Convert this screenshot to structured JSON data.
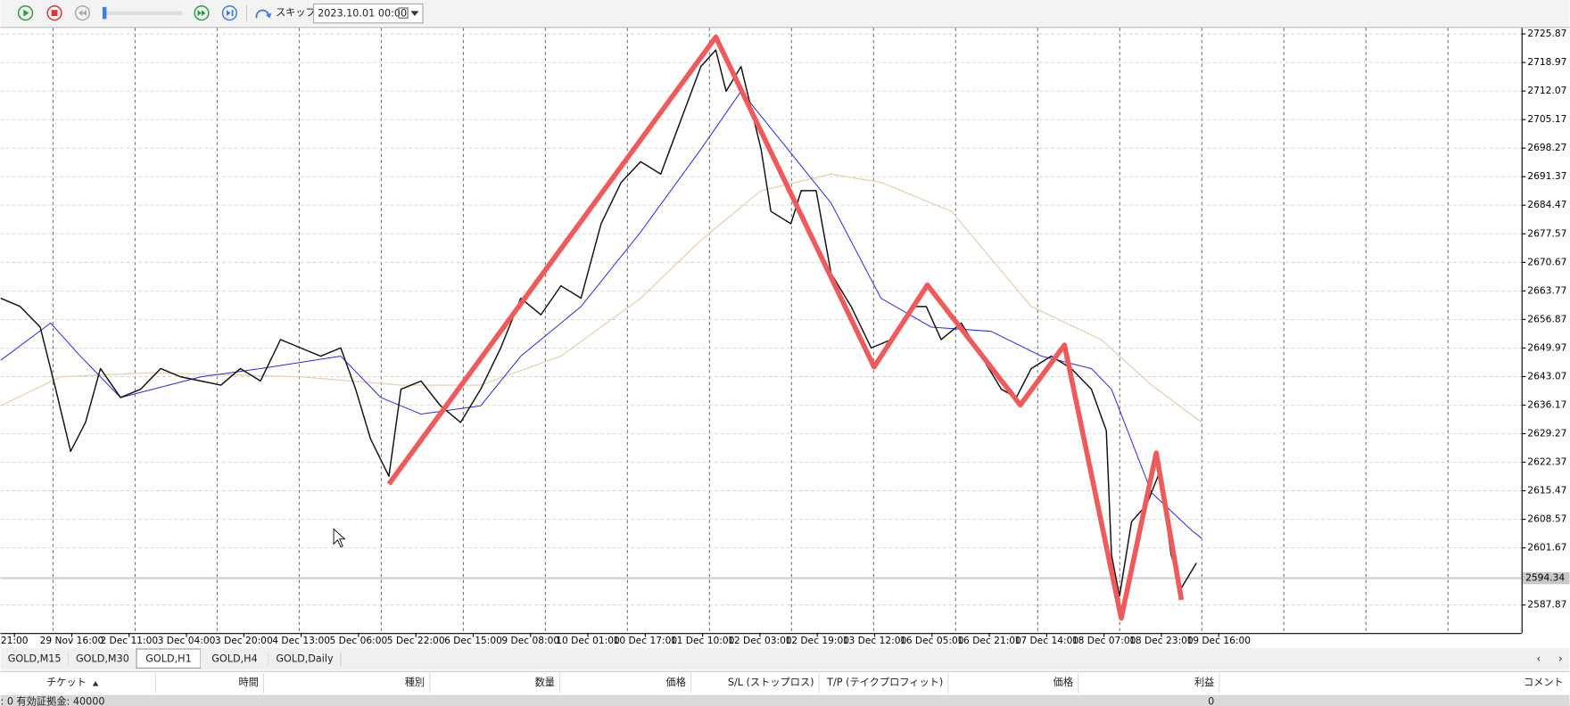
{
  "toolbar": {
    "skip_label": "スキップ",
    "date": "2023.10.01 00:00"
  },
  "chart_data": {
    "type": "line",
    "xlim": [
      -0.244,
      26.28
    ],
    "ylim": [
      2581.1,
      2727.3
    ],
    "xticks": [
      {
        "value": 0,
        "label": "21:00"
      },
      {
        "value": 1,
        "label": "29 Nov 16:00"
      },
      {
        "value": 2,
        "label": "2 Dec 11:00"
      },
      {
        "value": 3,
        "label": "3 Dec 04:00"
      },
      {
        "value": 4,
        "label": "3 Dec 20:00"
      },
      {
        "value": 5,
        "label": "4 Dec 13:00"
      },
      {
        "value": 6,
        "label": "5 Dec 06:00"
      },
      {
        "value": 7,
        "label": "5 Dec 22:00"
      },
      {
        "value": 8,
        "label": "6 Dec 15:00"
      },
      {
        "value": 9,
        "label": "9 Dec 08:00"
      },
      {
        "value": 10,
        "label": "10 Dec 01:00"
      },
      {
        "value": 11,
        "label": "10 Dec 17:00"
      },
      {
        "value": 12,
        "label": "11 Dec 10:00"
      },
      {
        "value": 13,
        "label": "12 Dec 03:00"
      },
      {
        "value": 14,
        "label": "12 Dec 19:00"
      },
      {
        "value": 15,
        "label": "13 Dec 12:00"
      },
      {
        "value": 16,
        "label": "16 Dec 05:00"
      },
      {
        "value": 17,
        "label": "16 Dec 21:00"
      },
      {
        "value": 18,
        "label": "17 Dec 14:00"
      },
      {
        "value": 19,
        "label": "18 Dec 07:00"
      },
      {
        "value": 20,
        "label": "18 Dec 23:00"
      },
      {
        "value": 21,
        "label": "19 Dec 16:00"
      }
    ],
    "yticks": [
      2725.87,
      2718.97,
      2712.07,
      2705.17,
      2698.27,
      2691.37,
      2684.47,
      2677.57,
      2670.67,
      2663.77,
      2656.87,
      2649.97,
      2643.07,
      2636.17,
      2629.27,
      2622.37,
      2615.47,
      2608.57,
      2601.67,
      2587.87
    ],
    "grid": true,
    "current_price": 2594.34,
    "series": [
      {
        "color": "#e9d2b4",
        "width": 1.2,
        "x": [
          -0.24,
          0.8,
          2.37,
          4.99,
          6.74,
          8.13,
          9.53,
          10.92,
          11.97,
          13.02,
          14.24,
          15.11,
          16.34,
          17.73,
          18.95,
          19.83,
          20.7
        ],
        "values": [
          2636,
          2643,
          2644,
          2643,
          2641,
          2641,
          2648,
          2662,
          2676,
          2688,
          2692,
          2690,
          2683,
          2660,
          2652,
          2641,
          2632
        ]
      },
      {
        "color": "#2a2ae6",
        "width": 0.9,
        "x": [
          -0.24,
          0.63,
          1.15,
          1.85,
          3.25,
          4.29,
          5.69,
          6.39,
          7.09,
          8.13,
          8.83,
          9.88,
          10.92,
          11.97,
          12.67,
          13.37,
          14.24,
          15.11,
          15.99,
          17.03,
          17.91,
          18.78,
          19.13,
          19.83,
          20.52,
          20.7
        ],
        "values": [
          2647,
          2656,
          2648,
          2638,
          2643,
          2645,
          2648,
          2638,
          2634,
          2636,
          2648,
          2660,
          2678,
          2698,
          2712,
          2700,
          2685,
          2662,
          2655,
          2654,
          2648,
          2645,
          2640,
          2615,
          2606,
          2604
        ]
      },
      {
        "color": "#111111",
        "width": 1.3,
        "x": [
          -0.24,
          0.1,
          0.45,
          0.72,
          0.98,
          1.24,
          1.5,
          1.85,
          2.2,
          2.55,
          2.9,
          3.25,
          3.6,
          3.94,
          4.29,
          4.64,
          4.99,
          5.34,
          5.69,
          5.95,
          6.21,
          6.53,
          6.74,
          7.09,
          7.43,
          7.78,
          8.13,
          8.48,
          8.83,
          9.18,
          9.53,
          9.88,
          10.23,
          10.58,
          10.92,
          11.27,
          11.62,
          11.97,
          12.23,
          12.41,
          12.67,
          13.02,
          13.19,
          13.54,
          13.72,
          13.98,
          14.24,
          14.59,
          14.94,
          15.29,
          15.64,
          15.9,
          16.16,
          16.51,
          16.86,
          17.21,
          17.47,
          17.73,
          18.08,
          18.43,
          18.78,
          19.04,
          19.13,
          19.27,
          19.48,
          19.74,
          19.97,
          20.17,
          20.35,
          20.61
        ],
        "values": [
          2662,
          2660,
          2655,
          2640,
          2625,
          2632,
          2645,
          2638,
          2640,
          2645,
          2643,
          2642,
          2641,
          2645,
          2642,
          2652,
          2650,
          2648,
          2650,
          2640,
          2628,
          2619,
          2640,
          2642,
          2636,
          2632,
          2640,
          2650,
          2662,
          2658,
          2665,
          2662,
          2680,
          2690,
          2695,
          2692,
          2705,
          2718,
          2722,
          2712,
          2718,
          2698,
          2683,
          2680,
          2688,
          2688,
          2668,
          2660,
          2650,
          2652,
          2660,
          2660,
          2652,
          2656,
          2648,
          2640,
          2638,
          2645,
          2648,
          2645,
          2640,
          2630,
          2600,
          2590,
          2608,
          2612,
          2620,
          2600,
          2592,
          2598
        ]
      },
      {
        "color": "#f05a5a",
        "width": 5,
        "x": [
          6.53,
          12.23,
          14.99,
          15.92,
          17.54,
          18.31,
          19.3,
          19.91,
          20.35
        ],
        "values": [
          2617.1,
          2725.1,
          2645.4,
          2665.2,
          2636.2,
          2650.7,
          2584.7,
          2624.6,
          2589.1
        ]
      }
    ]
  },
  "tabs": [
    "GOLD,M15",
    "GOLD,M30",
    "GOLD,H1",
    "GOLD,H4",
    "GOLD,Daily"
  ],
  "active_tab": 2,
  "table": {
    "headers": [
      "チケット",
      "時間",
      "種別",
      "数量",
      "価格",
      "S/L (ストップロス)",
      "T/P (テイクプロフィット)",
      "価格",
      "利益",
      "コメント"
    ],
    "balance_row": {
      "label": ": 0  有効証拠金: 40000",
      "profit": 0
    }
  }
}
